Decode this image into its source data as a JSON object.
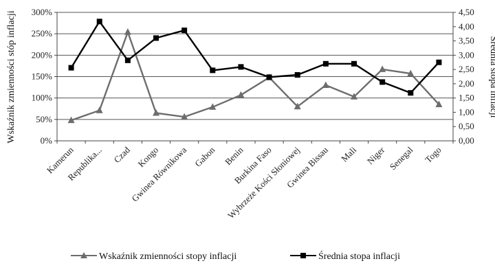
{
  "chart_data": {
    "type": "line",
    "categories": [
      "Kamerun",
      "Republika...",
      "Czad",
      "Kongo",
      "Gwinea Równikowa",
      "Gabon",
      "Benin",
      "Burkina Faso",
      "Wybrzeże Kości Słoniowej",
      "Gwinea Bissau",
      "Mali",
      "Niger",
      "Senegal",
      "Togo"
    ],
    "series": [
      {
        "name": "Wskaźnik zmienności stopy inflacji",
        "axis": "left",
        "color": "#6d6d6d",
        "marker": "triangle",
        "values": [
          48,
          71,
          254,
          65,
          56,
          79,
          107,
          148,
          80,
          130,
          103,
          167,
          157,
          85
        ]
      },
      {
        "name": "Średnia stopa inflacji",
        "axis": "right",
        "color": "#000000",
        "marker": "square",
        "values": [
          2.56,
          4.18,
          2.82,
          3.6,
          3.87,
          2.47,
          2.59,
          2.23,
          2.31,
          2.7,
          2.7,
          2.06,
          1.68,
          2.75
        ]
      }
    ],
    "ylabel_left": "Wskaźnik zmienności stóp inflacji",
    "ylabel_right": "Średnia stopa inflacji",
    "ylim_left": [
      0,
      300
    ],
    "ylim_right": [
      0,
      4.5
    ],
    "yticks_left": [
      "0%",
      "50%",
      "100%",
      "150%",
      "200%",
      "250%",
      "300%"
    ],
    "yticks_right": [
      "0,00",
      "0,50",
      "1,00",
      "1,50",
      "2,00",
      "2,50",
      "3,00",
      "3,50",
      "4,00",
      "4,50"
    ],
    "grid": "horizontal",
    "legend_position": "bottom"
  }
}
